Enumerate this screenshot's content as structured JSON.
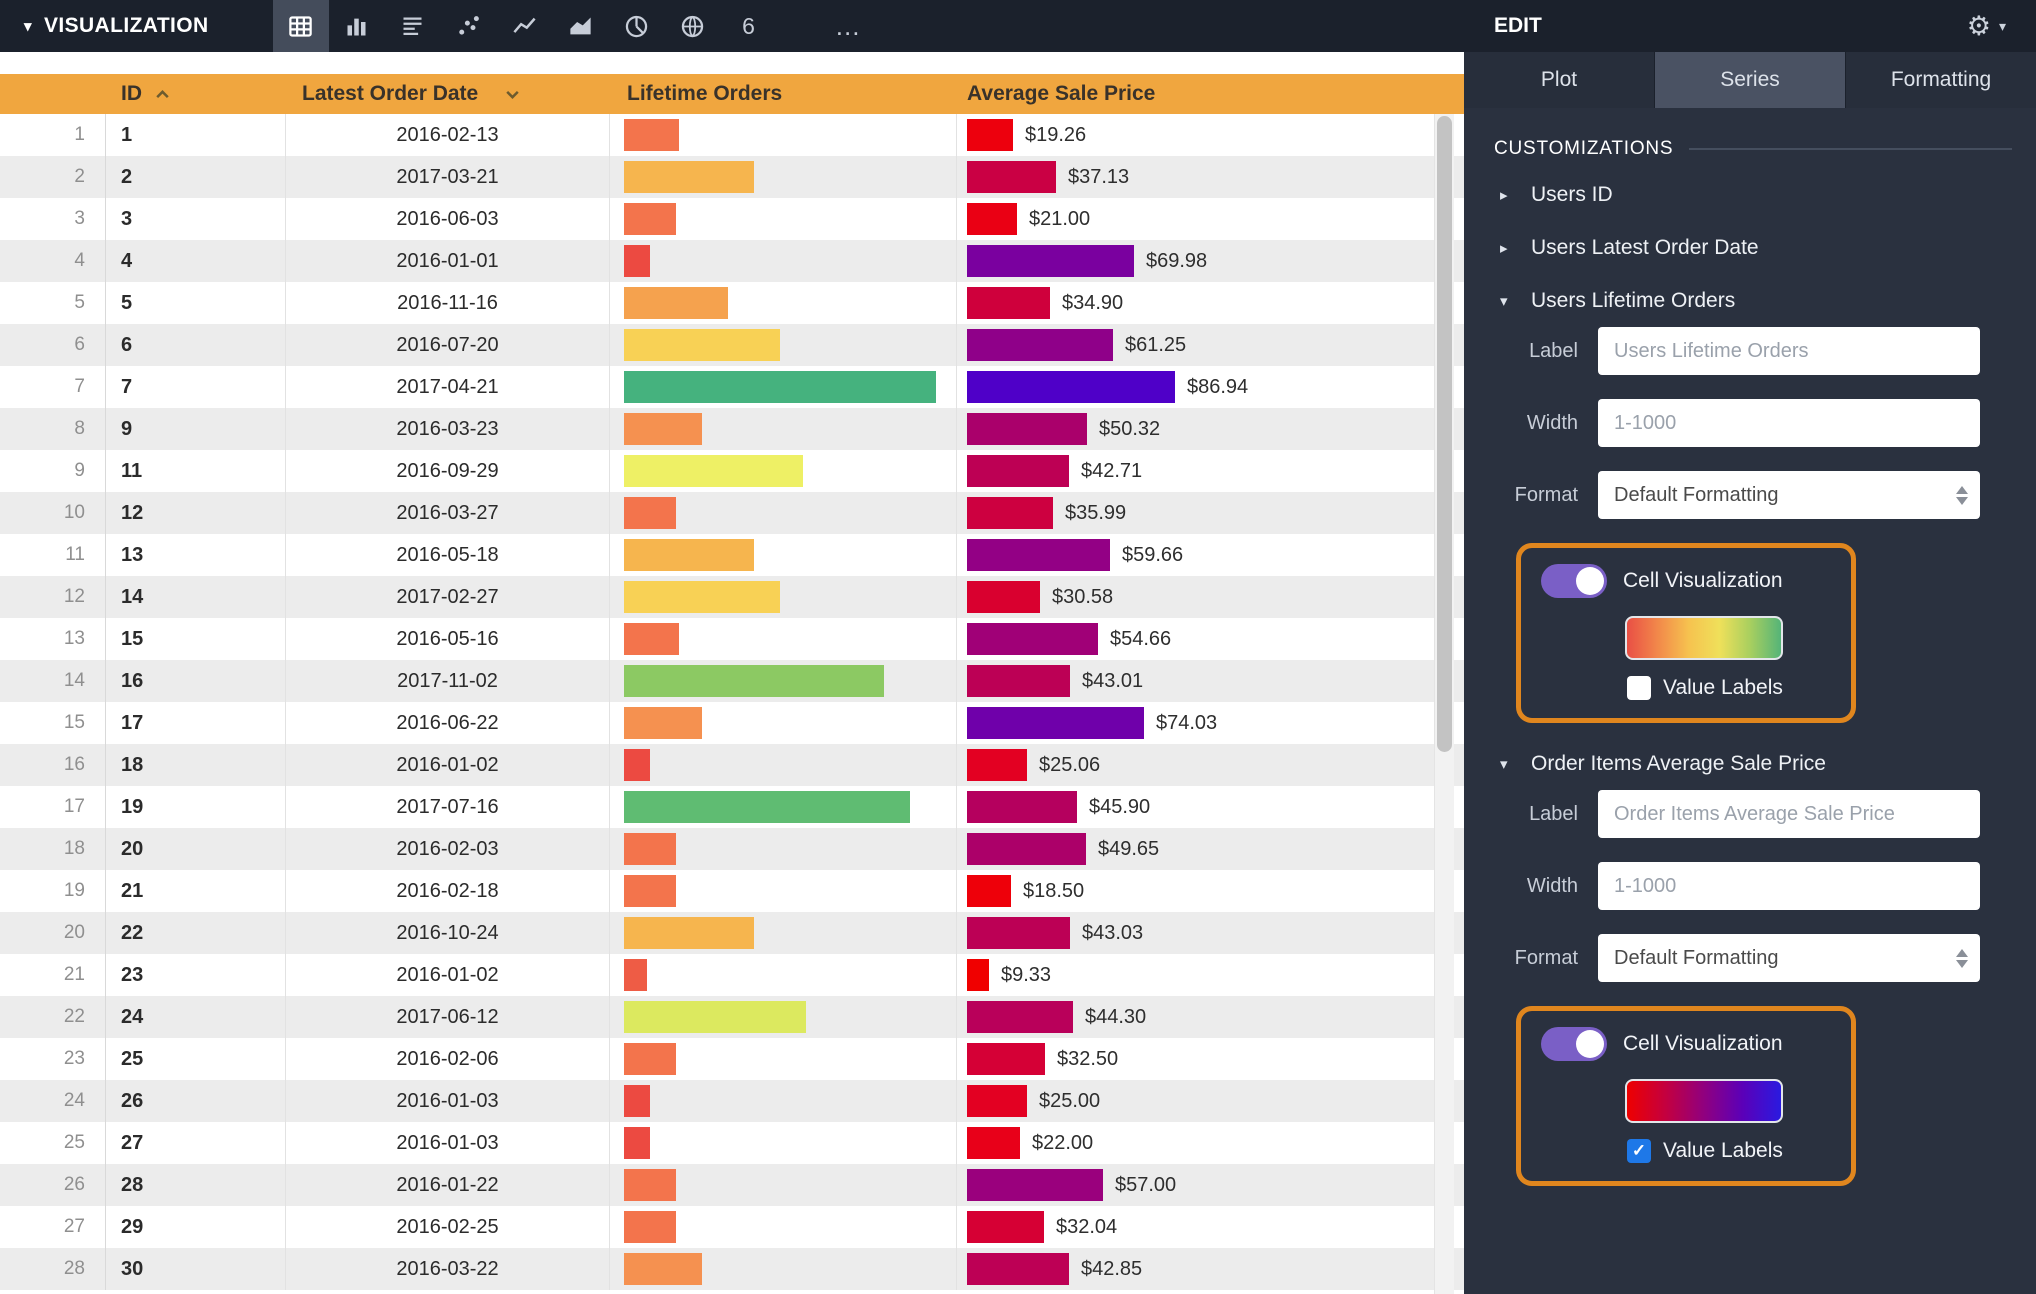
{
  "top_bar": {
    "menu_label": "VISUALIZATION",
    "viz_icons": [
      {
        "name": "table-viz-icon",
        "selected": true
      },
      {
        "name": "column-chart-icon",
        "selected": false
      },
      {
        "name": "text-report-icon",
        "selected": false
      },
      {
        "name": "scatter-plot-icon",
        "selected": false
      },
      {
        "name": "line-chart-icon",
        "selected": false
      },
      {
        "name": "area-chart-icon",
        "selected": false
      },
      {
        "name": "pie-chart-icon",
        "selected": false
      },
      {
        "name": "map-viz-icon",
        "selected": false
      },
      {
        "name": "single-value-icon",
        "selected": false,
        "text": "6"
      },
      {
        "name": "more-viz-icon",
        "selected": false,
        "text": "…"
      }
    ]
  },
  "edit_panel": {
    "title": "EDIT",
    "tabs": [
      {
        "label": "Plot",
        "selected": false
      },
      {
        "label": "Series",
        "selected": true
      },
      {
        "label": "Formatting",
        "selected": false
      }
    ],
    "customizations_label": "CUSTOMIZATIONS",
    "sections": [
      {
        "label": "Users ID",
        "expanded": false
      },
      {
        "label": "Users Latest Order Date",
        "expanded": false
      },
      {
        "label": "Users Lifetime Orders",
        "expanded": true,
        "label_field": {
          "label": "Label",
          "placeholder": "Users Lifetime Orders"
        },
        "width_field": {
          "label": "Width",
          "placeholder": "1-1000"
        },
        "format_field": {
          "label": "Format",
          "value": "Default Formatting"
        },
        "cell_visualization": {
          "label": "Cell Visualization",
          "enabled": true,
          "highlighted": true,
          "highlight_color": "#e0861e",
          "gradient": [
            "#e94f45",
            "#f2884a",
            "#f6c24f",
            "#efe05a",
            "#a8cf5f",
            "#55b478"
          ],
          "value_labels": {
            "label": "Value Labels",
            "checked": false
          }
        }
      },
      {
        "label": "Order Items Average Sale Price",
        "expanded": true,
        "label_field": {
          "label": "Label",
          "placeholder": "Order Items Average Sale Price"
        },
        "width_field": {
          "label": "Width",
          "placeholder": "1-1000"
        },
        "format_field": {
          "label": "Format",
          "value": "Default Formatting"
        },
        "cell_visualization": {
          "label": "Cell Visualization",
          "enabled": true,
          "highlighted": true,
          "highlight_color": "#e0861e",
          "gradient": [
            "#ee0000",
            "#c4003f",
            "#90007f",
            "#5b00b8",
            "#2a1ae0"
          ],
          "value_labels": {
            "label": "Value Labels",
            "checked": true
          }
        }
      }
    ]
  },
  "table": {
    "headers": {
      "id": "ID",
      "date": "Latest Order Date",
      "orders": "Lifetime Orders",
      "price": "Average Sale Price"
    },
    "sort": {
      "id": "asc",
      "date": "desc"
    },
    "header_color": "#f0a63f",
    "rows": [
      {
        "n": 1,
        "id": "1",
        "date": "2016-02-13",
        "ow": 55,
        "oc": "#f3744c",
        "pw": 46,
        "pc": "#ed000d",
        "price": "$19.26"
      },
      {
        "n": 2,
        "id": "2",
        "date": "2017-03-21",
        "ow": 130,
        "oc": "#f6b54e",
        "pw": 89,
        "pc": "#ca0044",
        "price": "$37.13"
      },
      {
        "n": 3,
        "id": "3",
        "date": "2016-06-03",
        "ow": 52,
        "oc": "#f3744c",
        "pw": 50,
        "pc": "#ea0014",
        "price": "$21.00"
      },
      {
        "n": 4,
        "id": "4",
        "date": "2016-01-01",
        "ow": 26,
        "oc": "#ec4a41",
        "pw": 167,
        "pc": "#7a009f",
        "price": "$69.98"
      },
      {
        "n": 5,
        "id": "5",
        "date": "2016-11-16",
        "ow": 104,
        "oc": "#f5a24e",
        "pw": 83,
        "pc": "#cf003c",
        "price": "$34.90"
      },
      {
        "n": 6,
        "id": "6",
        "date": "2016-07-20",
        "ow": 156,
        "oc": "#f8d155",
        "pw": 146,
        "pc": "#8f0089",
        "price": "$61.25"
      },
      {
        "n": 7,
        "id": "7",
        "date": "2017-04-21",
        "ow": 312,
        "oc": "#45b27e",
        "pw": 208,
        "pc": "#4f00c8",
        "price": "$86.94"
      },
      {
        "n": 8,
        "id": "9",
        "date": "2016-03-23",
        "ow": 78,
        "oc": "#f59150",
        "pw": 120,
        "pc": "#aa006b",
        "price": "$50.32"
      },
      {
        "n": 9,
        "id": "11",
        "date": "2016-09-29",
        "ow": 179,
        "oc": "#eef065",
        "pw": 102,
        "pc": "#bd0054",
        "price": "$42.71"
      },
      {
        "n": 10,
        "id": "12",
        "date": "2016-03-27",
        "ow": 52,
        "oc": "#f3744c",
        "pw": 86,
        "pc": "#cd0040",
        "price": "$35.99"
      },
      {
        "n": 11,
        "id": "13",
        "date": "2016-05-18",
        "ow": 130,
        "oc": "#f6b54e",
        "pw": 143,
        "pc": "#930085",
        "price": "$59.66"
      },
      {
        "n": 12,
        "id": "14",
        "date": "2017-02-27",
        "ow": 156,
        "oc": "#f8d155",
        "pw": 73,
        "pc": "#d9002f",
        "price": "$30.58"
      },
      {
        "n": 13,
        "id": "15",
        "date": "2016-05-16",
        "ow": 55,
        "oc": "#f3744c",
        "pw": 131,
        "pc": "#a00077",
        "price": "$54.66"
      },
      {
        "n": 14,
        "id": "16",
        "date": "2017-11-02",
        "ow": 260,
        "oc": "#8cc963",
        "pw": 103,
        "pc": "#bc0055",
        "price": "$43.01"
      },
      {
        "n": 15,
        "id": "17",
        "date": "2016-06-22",
        "ow": 78,
        "oc": "#f59150",
        "pw": 177,
        "pc": "#6f00aa",
        "price": "$74.03"
      },
      {
        "n": 16,
        "id": "18",
        "date": "2016-01-02",
        "ow": 26,
        "oc": "#ec4a41",
        "pw": 60,
        "pc": "#e30022",
        "price": "$25.06"
      },
      {
        "n": 17,
        "id": "19",
        "date": "2017-07-16",
        "ow": 286,
        "oc": "#5fbc72",
        "pw": 110,
        "pc": "#b5005e",
        "price": "$45.90"
      },
      {
        "n": 18,
        "id": "20",
        "date": "2016-02-03",
        "ow": 52,
        "oc": "#f3744c",
        "pw": 119,
        "pc": "#ac0069",
        "price": "$49.65"
      },
      {
        "n": 19,
        "id": "21",
        "date": "2016-02-18",
        "ow": 52,
        "oc": "#f3744c",
        "pw": 44,
        "pc": "#ee000a",
        "price": "$18.50"
      },
      {
        "n": 20,
        "id": "22",
        "date": "2016-10-24",
        "ow": 130,
        "oc": "#f6b54e",
        "pw": 103,
        "pc": "#bc0055",
        "price": "$43.03"
      },
      {
        "n": 21,
        "id": "23",
        "date": "2016-01-02",
        "ow": 23,
        "oc": "#ee5c45",
        "pw": 22,
        "pc": "#f00000",
        "price": "$9.33"
      },
      {
        "n": 22,
        "id": "24",
        "date": "2017-06-12",
        "ow": 182,
        "oc": "#dce95f",
        "pw": 106,
        "pc": "#b9005a",
        "price": "$44.30"
      },
      {
        "n": 23,
        "id": "25",
        "date": "2016-02-06",
        "ow": 52,
        "oc": "#f3744c",
        "pw": 78,
        "pc": "#d50036",
        "price": "$32.50"
      },
      {
        "n": 24,
        "id": "26",
        "date": "2016-01-03",
        "ow": 26,
        "oc": "#ec4a41",
        "pw": 60,
        "pc": "#e30022",
        "price": "$25.00"
      },
      {
        "n": 25,
        "id": "27",
        "date": "2016-01-03",
        "ow": 26,
        "oc": "#ec4a41",
        "pw": 53,
        "pc": "#e80019",
        "price": "$22.00"
      },
      {
        "n": 26,
        "id": "28",
        "date": "2016-01-22",
        "ow": 52,
        "oc": "#f3744c",
        "pw": 136,
        "pc": "#9a007d",
        "price": "$57.00"
      },
      {
        "n": 27,
        "id": "29",
        "date": "2016-02-25",
        "ow": 52,
        "oc": "#f3744c",
        "pw": 77,
        "pc": "#d60034",
        "price": "$32.04"
      },
      {
        "n": 28,
        "id": "30",
        "date": "2016-03-22",
        "ow": 78,
        "oc": "#f59150",
        "pw": 102,
        "pc": "#bd0055",
        "price": "$42.85"
      }
    ]
  }
}
